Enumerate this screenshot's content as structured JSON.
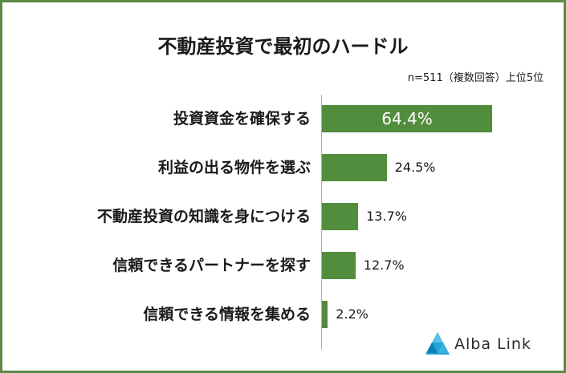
{
  "chart_data": {
    "type": "bar",
    "orientation": "horizontal",
    "title": "不動産投資で最初のハードル",
    "note": "n=511（複数回答）上位5位",
    "categories": [
      "投資資金を確保する",
      "利益の出る物件を選ぶ",
      "不動産投資の知識を身につける",
      "信頼できるパートナーを探す",
      "信頼できる情報を集める"
    ],
    "values": [
      64.4,
      24.5,
      13.7,
      12.7,
      2.2
    ],
    "value_labels": [
      "64.4%",
      "24.5%",
      "13.7%",
      "12.7%",
      "2.2%"
    ],
    "xlim": [
      0,
      75
    ],
    "grid": false,
    "bar_color": "#528d3e"
  },
  "logo": {
    "text": "Alba Link",
    "colors": [
      "#1fa3d8",
      "#5bc2e7"
    ]
  },
  "frame_color": "#5b8a45"
}
